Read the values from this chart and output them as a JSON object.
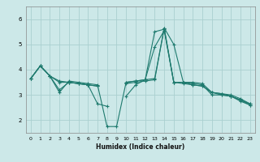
{
  "xlabel": "Humidex (Indice chaleur)",
  "bg_color": "#cce8e8",
  "grid_color": "#aad0d0",
  "line_color": "#1e7a6e",
  "xlim": [
    -0.5,
    23.5
  ],
  "ylim": [
    1.5,
    6.5
  ],
  "yticks": [
    2,
    3,
    4,
    5,
    6
  ],
  "xticks": [
    0,
    1,
    2,
    3,
    4,
    5,
    6,
    7,
    8,
    9,
    10,
    11,
    12,
    13,
    14,
    15,
    16,
    17,
    18,
    19,
    20,
    21,
    22,
    23
  ],
  "series": [
    {
      "x": [
        0,
        1,
        2,
        3,
        4,
        5,
        6,
        7,
        8,
        9,
        10,
        11,
        12,
        13,
        14,
        15,
        16,
        17,
        18,
        19,
        20,
        21,
        22,
        23
      ],
      "y": [
        3.65,
        4.15,
        3.75,
        3.55,
        3.5,
        3.45,
        3.4,
        3.35,
        null,
        null,
        3.5,
        3.55,
        3.6,
        3.65,
        5.65,
        5.0,
        3.5,
        3.4,
        3.35,
        3.1,
        3.05,
        2.95,
        2.8,
        2.65
      ]
    },
    {
      "x": [
        0,
        1,
        2,
        3,
        4,
        5,
        6,
        7,
        8,
        9,
        10,
        11,
        12,
        13,
        14,
        15,
        16,
        17,
        18,
        19,
        20,
        21,
        22,
        23
      ],
      "y": [
        3.65,
        4.15,
        3.75,
        3.5,
        3.5,
        3.45,
        3.4,
        3.35,
        null,
        null,
        3.45,
        3.5,
        3.55,
        3.6,
        5.65,
        3.5,
        3.45,
        3.4,
        3.35,
        3.1,
        3.0,
        2.95,
        2.8,
        2.6
      ]
    },
    {
      "x": [
        0,
        1,
        2,
        3,
        4,
        5,
        6,
        7,
        8,
        9,
        10,
        11,
        12,
        13,
        14,
        15,
        16,
        17,
        18,
        19,
        20,
        21,
        22,
        23
      ],
      "y": [
        3.65,
        4.15,
        3.75,
        3.2,
        3.5,
        3.45,
        3.4,
        2.65,
        2.55,
        null,
        2.95,
        3.4,
        3.6,
        4.9,
        5.55,
        3.5,
        3.5,
        3.45,
        3.4,
        3.0,
        3.0,
        2.95,
        2.75,
        2.6
      ]
    },
    {
      "x": [
        0,
        1,
        2,
        3,
        4,
        5,
        6,
        7,
        8,
        9,
        10,
        11,
        12,
        13,
        14,
        15,
        16,
        17,
        18,
        19,
        20,
        21,
        22,
        23
      ],
      "y": [
        3.65,
        4.15,
        3.75,
        3.1,
        3.55,
        3.5,
        3.45,
        3.4,
        1.75,
        1.75,
        3.5,
        3.55,
        3.6,
        5.5,
        5.6,
        3.5,
        3.5,
        3.5,
        3.45,
        3.1,
        3.05,
        3.0,
        2.85,
        2.65
      ]
    }
  ]
}
